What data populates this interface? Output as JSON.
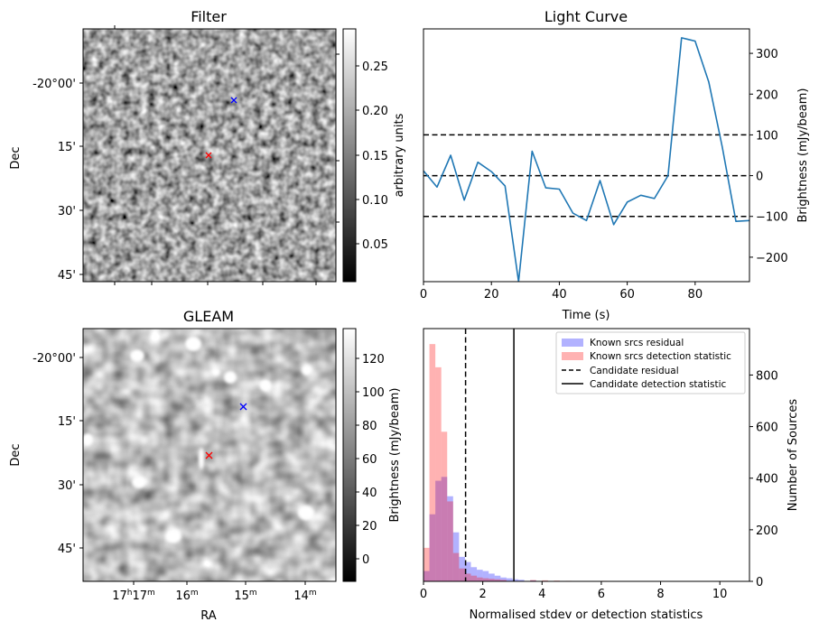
{
  "panels": {
    "filter": {
      "title": "Filter",
      "ylabel": "Dec",
      "yticks": [
        "-20°00'",
        "15'",
        "30'",
        "45'"
      ],
      "colorbar": {
        "label": "arbitrary units",
        "ticks": [
          "0.05",
          "0.10",
          "0.15",
          "0.20",
          "0.25"
        ]
      },
      "markers": [
        {
          "symbol": "x",
          "color": "#0000ff"
        },
        {
          "symbol": "x",
          "color": "#ff0000"
        }
      ]
    },
    "gleam": {
      "title": "GLEAM",
      "ylabel": "Dec",
      "xlabel": "RA",
      "yticks": [
        "-20°00'",
        "15'",
        "30'",
        "45'"
      ],
      "xticks": [
        {
          "main": "17",
          "sup1": "h",
          "main2": "17",
          "sup2": "m"
        },
        {
          "main": "16",
          "sup1": "m"
        },
        {
          "main": "15",
          "sup1": "m"
        },
        {
          "main": "14",
          "sup1": "m"
        }
      ],
      "colorbar": {
        "label": "Brightness (mJy/beam)",
        "ticks": [
          "0",
          "20",
          "40",
          "60",
          "80",
          "100",
          "120"
        ]
      },
      "markers": [
        {
          "symbol": "x",
          "color": "#0000ff"
        },
        {
          "symbol": "x",
          "color": "#ff0000"
        }
      ]
    }
  },
  "chart_data": [
    {
      "type": "line",
      "title": "Light Curve",
      "xlabel": "Time (s)",
      "ylabel": "Brightness (mJy/beam)",
      "xlim": [
        0,
        96
      ],
      "ylim": [
        -260,
        360
      ],
      "xticks": [
        0,
        20,
        40,
        60,
        80
      ],
      "yticks": [
        -200,
        -100,
        0,
        100,
        200,
        300
      ],
      "color": "#1f77b4",
      "x": [
        0,
        4,
        8,
        12,
        16,
        20,
        24,
        28,
        32,
        36,
        40,
        44,
        48,
        52,
        56,
        60,
        64,
        68,
        72,
        76,
        80,
        84,
        88,
        92,
        96
      ],
      "y": [
        12,
        -28,
        50,
        -60,
        33,
        10,
        -25,
        -260,
        60,
        -30,
        -33,
        -92,
        -110,
        -12,
        -120,
        -65,
        -48,
        -56,
        0,
        338,
        330,
        230,
        70,
        -112,
        -110
      ],
      "hlines": [
        {
          "y": 100,
          "style": "dashed"
        },
        {
          "y": 0,
          "style": "dashed"
        },
        {
          "y": -100,
          "style": "dashed"
        }
      ]
    },
    {
      "type": "histogram",
      "xlabel": "Normalised stdev or detection statistics",
      "ylabel": "Number of Sources",
      "xlim": [
        0,
        11
      ],
      "ylim": [
        0,
        980
      ],
      "xticks": [
        0,
        2,
        4,
        6,
        8,
        10
      ],
      "yticks": [
        0,
        200,
        400,
        600,
        800
      ],
      "legend_position": "top-right",
      "bin_width": 0.2,
      "series": [
        {
          "name": "Known srcs residual",
          "color": "#0000ff",
          "alpha": 0.3,
          "bin_starts": [
            0,
            0.2,
            0.4,
            0.6,
            0.8,
            1.0,
            1.2,
            1.4,
            1.6,
            1.8,
            2.0,
            2.2,
            2.4,
            2.6,
            2.8,
            3.0,
            3.2,
            3.6,
            4.0
          ],
          "counts": [
            40,
            260,
            390,
            405,
            330,
            190,
            95,
            75,
            55,
            45,
            40,
            30,
            22,
            15,
            12,
            8,
            6,
            4,
            2
          ]
        },
        {
          "name": "Known srcs detection statistic",
          "color": "#ff0000",
          "alpha": 0.3,
          "bin_starts": [
            0,
            0.2,
            0.4,
            0.6,
            0.8,
            1.0,
            1.2,
            1.4,
            1.6,
            1.8,
            2.0,
            2.2,
            2.4,
            2.6,
            3.6,
            4.0,
            4.4,
            4.8,
            6.0
          ],
          "counts": [
            130,
            920,
            830,
            580,
            310,
            110,
            50,
            30,
            22,
            15,
            12,
            10,
            8,
            6,
            5,
            4,
            3,
            2,
            2
          ]
        }
      ],
      "vlines": [
        {
          "name": "Candidate residual",
          "x": 1.42,
          "style": "dashed"
        },
        {
          "name": "Candidate detection statistic",
          "x": 3.05,
          "style": "solid"
        }
      ]
    }
  ]
}
